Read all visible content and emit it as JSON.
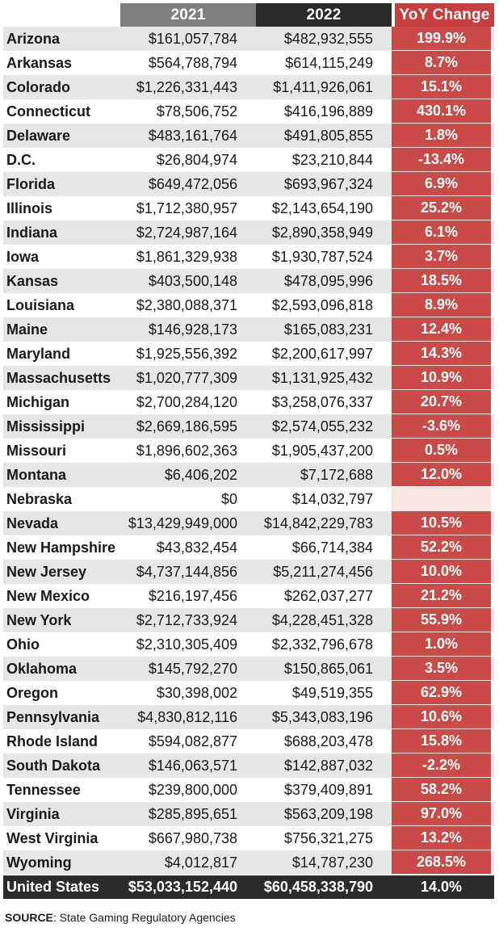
{
  "header": {
    "col_2021": "2021",
    "col_2022": "2022",
    "col_change": "YoY Change"
  },
  "chart_data": {
    "type": "table",
    "columns": [
      "2021",
      "2022",
      "YoY Change"
    ],
    "rows": [
      {
        "state": "Arizona",
        "y2021": "$161,057,784",
        "y2022": "$482,932,555",
        "change": "199.9%"
      },
      {
        "state": "Arkansas",
        "y2021": "$564,788,794",
        "y2022": "$614,115,249",
        "change": "8.7%"
      },
      {
        "state": "Colorado",
        "y2021": "$1,226,331,443",
        "y2022": "$1,411,926,061",
        "change": "15.1%"
      },
      {
        "state": "Connecticut",
        "y2021": "$78,506,752",
        "y2022": "$416,196,889",
        "change": "430.1%"
      },
      {
        "state": "Delaware",
        "y2021": "$483,161,764",
        "y2022": "$491,805,855",
        "change": "1.8%"
      },
      {
        "state": "D.C.",
        "y2021": "$26,804,974",
        "y2022": "$23,210,844",
        "change": "-13.4%"
      },
      {
        "state": "Florida",
        "y2021": "$649,472,056",
        "y2022": "$693,967,324",
        "change": "6.9%"
      },
      {
        "state": "Illinois",
        "y2021": "$1,712,380,957",
        "y2022": "$2,143,654,190",
        "change": "25.2%"
      },
      {
        "state": "Indiana",
        "y2021": "$2,724,987,164",
        "y2022": "$2,890,358,949",
        "change": "6.1%"
      },
      {
        "state": "Iowa",
        "y2021": "$1,861,329,938",
        "y2022": "$1,930,787,524",
        "change": "3.7%"
      },
      {
        "state": "Kansas",
        "y2021": "$403,500,148",
        "y2022": "$478,095,996",
        "change": "18.5%"
      },
      {
        "state": "Louisiana",
        "y2021": "$2,380,088,371",
        "y2022": "$2,593,096,818",
        "change": "8.9%"
      },
      {
        "state": "Maine",
        "y2021": "$146,928,173",
        "y2022": "$165,083,231",
        "change": "12.4%"
      },
      {
        "state": "Maryland",
        "y2021": "$1,925,556,392",
        "y2022": "$2,200,617,997",
        "change": "14.3%"
      },
      {
        "state": "Massachusetts",
        "y2021": "$1,020,777,309",
        "y2022": "$1,131,925,432",
        "change": "10.9%"
      },
      {
        "state": "Michigan",
        "y2021": "$2,700,284,120",
        "y2022": "$3,258,076,337",
        "change": "20.7%"
      },
      {
        "state": "Mississippi",
        "y2021": "$2,669,186,595",
        "y2022": "$2,574,055,232",
        "change": "-3.6%"
      },
      {
        "state": "Missouri",
        "y2021": "$1,896,602,363",
        "y2022": "$1,905,437,200",
        "change": "0.5%"
      },
      {
        "state": "Montana",
        "y2021": "$6,406,202",
        "y2022": "$7,172,688",
        "change": "12.0%"
      },
      {
        "state": "Nebraska",
        "y2021": "$0",
        "y2022": "$14,032,797",
        "change": ""
      },
      {
        "state": "Nevada",
        "y2021": "$13,429,949,000",
        "y2022": "$14,842,229,783",
        "change": "10.5%"
      },
      {
        "state": "New Hampshire",
        "y2021": "$43,832,454",
        "y2022": "$66,714,384",
        "change": "52.2%"
      },
      {
        "state": "New Jersey",
        "y2021": "$4,737,144,856",
        "y2022": "$5,211,274,456",
        "change": "10.0%"
      },
      {
        "state": "New Mexico",
        "y2021": "$216,197,456",
        "y2022": "$262,037,277",
        "change": "21.2%"
      },
      {
        "state": "New York",
        "y2021": "$2,712,733,924",
        "y2022": "$4,228,451,328",
        "change": "55.9%"
      },
      {
        "state": "Ohio",
        "y2021": "$2,310,305,409",
        "y2022": "$2,332,796,678",
        "change": "1.0%"
      },
      {
        "state": "Oklahoma",
        "y2021": "$145,792,270",
        "y2022": "$150,865,061",
        "change": "3.5%"
      },
      {
        "state": "Oregon",
        "y2021": "$30,398,002",
        "y2022": "$49,519,355",
        "change": "62.9%"
      },
      {
        "state": "Pennsylvania",
        "y2021": "$4,830,812,116",
        "y2022": "$5,343,083,196",
        "change": "10.6%"
      },
      {
        "state": "Rhode Island",
        "y2021": "$594,082,877",
        "y2022": "$688,203,478",
        "change": "15.8%"
      },
      {
        "state": "South Dakota",
        "y2021": "$146,063,571",
        "y2022": "$142,887,032",
        "change": "-2.2%"
      },
      {
        "state": "Tennessee",
        "y2021": "$239,800,000",
        "y2022": "$379,409,891",
        "change": "58.2%"
      },
      {
        "state": "Virginia",
        "y2021": "$285,895,651",
        "y2022": "$563,209,198",
        "change": "97.0%"
      },
      {
        "state": "West Virginia",
        "y2021": "$667,980,738",
        "y2022": "$756,321,275",
        "change": "13.2%"
      },
      {
        "state": "Wyoming",
        "y2021": "$4,012,817",
        "y2022": "$14,787,230",
        "change": "268.5%"
      }
    ],
    "total": {
      "state": "United States",
      "y2021": "$53,033,152,440",
      "y2022": "$60,458,338,790",
      "change": "14.0%"
    }
  },
  "source": {
    "label": "SOURCE",
    "text": ": State Gaming Regulatory Agencies"
  },
  "colors": {
    "header_2021": "#7f7f7f",
    "header_2022": "#2b2b2b",
    "change_fill": "#c94a47",
    "empty_change_fill": "#f6e6df",
    "row_alt": "#e6e6e6",
    "total_row": "#2b2b2b"
  }
}
